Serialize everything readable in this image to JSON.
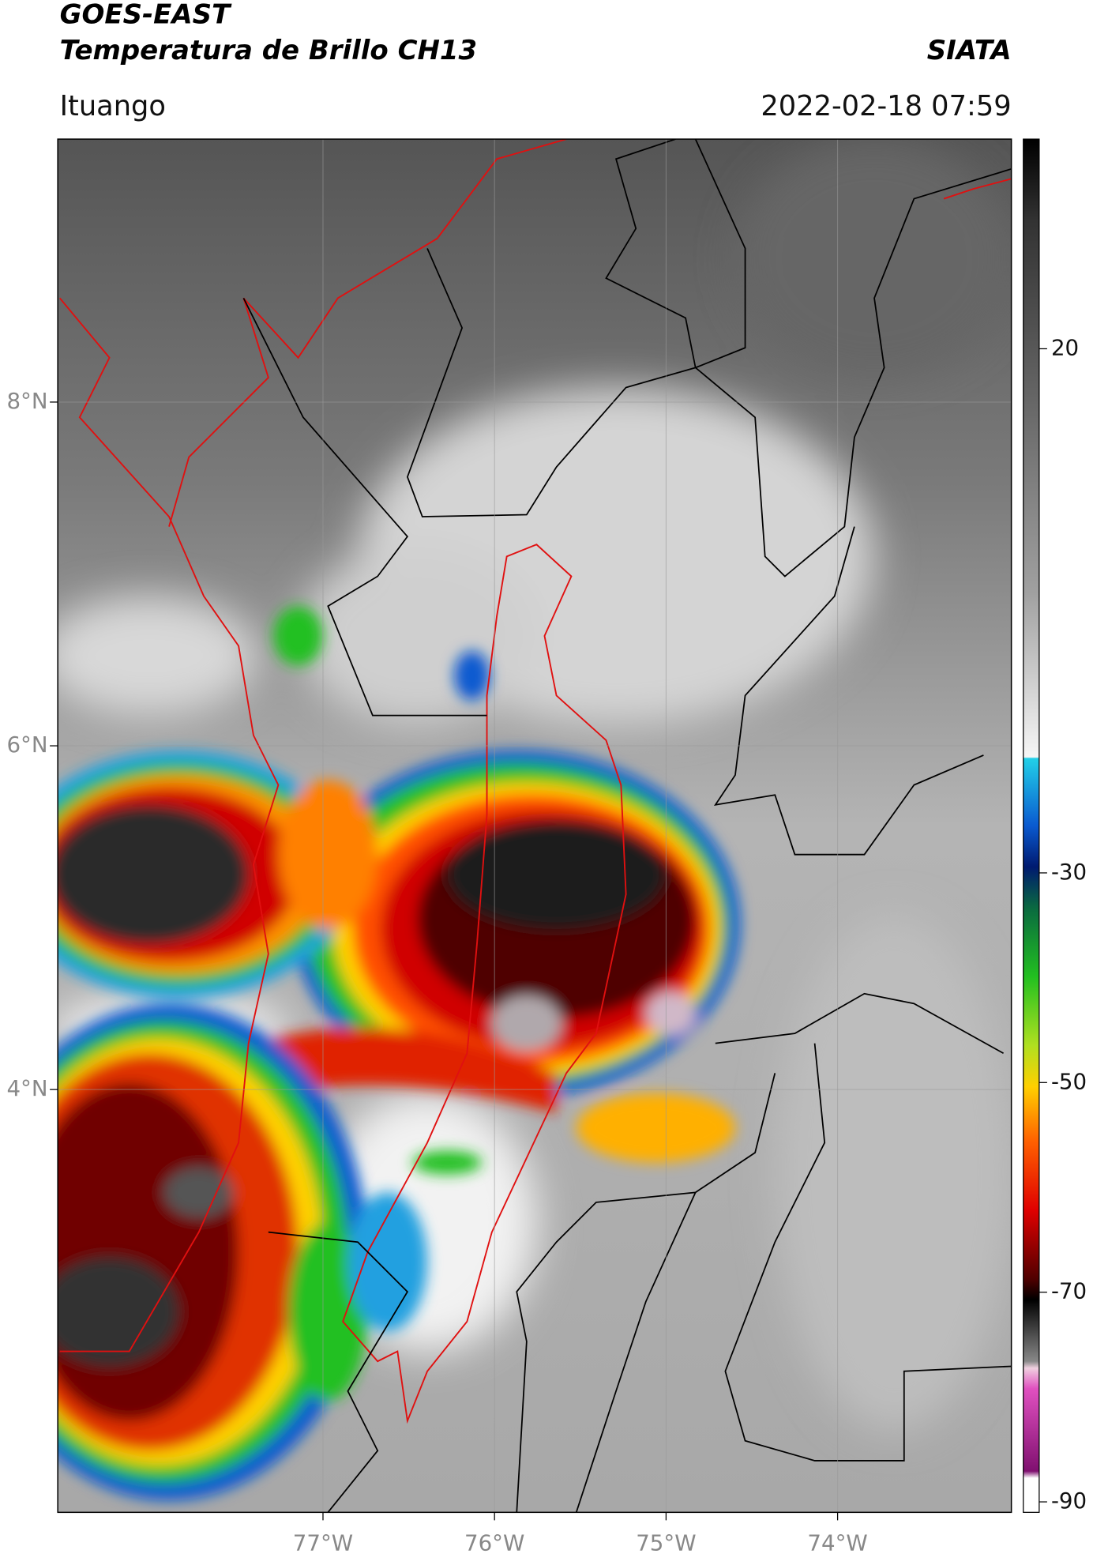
{
  "header": {
    "title": "GOES-EAST",
    "subtitle": "Temperatura de Brillo CH13",
    "source": "SIATA",
    "location": "Ituango",
    "datetime": "2022-02-18 07:59"
  },
  "map": {
    "xlim": [
      -78.546,
      -72.987
    ],
    "ylim": [
      1.54,
      9.53
    ],
    "xticks": [
      {
        "value": -77,
        "label": "77°W"
      },
      {
        "value": -76,
        "label": "76°W"
      },
      {
        "value": -75,
        "label": "75°W"
      },
      {
        "value": -74,
        "label": "74°W"
      }
    ],
    "yticks": [
      {
        "value": 8,
        "label": "8°N"
      },
      {
        "value": 6,
        "label": "6°N"
      },
      {
        "value": 4,
        "label": "4°N"
      }
    ],
    "grid": true
  },
  "colorbar": {
    "lim": [
      -91,
      40
    ],
    "ticks": [
      20,
      -30,
      -50,
      -70,
      -90
    ]
  }
}
